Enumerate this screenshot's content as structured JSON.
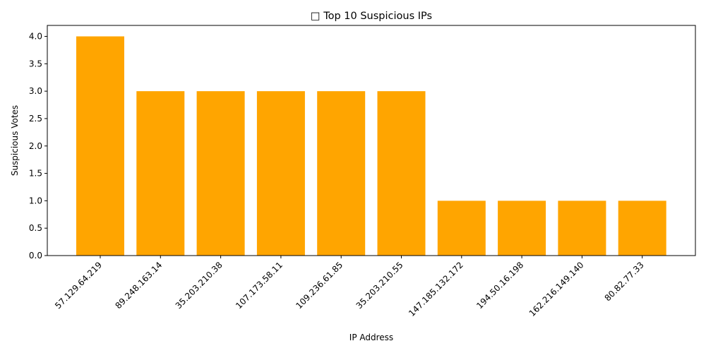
{
  "chart_data": {
    "type": "bar",
    "title": "□ Top 10 Suspicious IPs",
    "xlabel": "IP Address",
    "ylabel": "Suspicious Votes",
    "categories": [
      "57.129.64.219",
      "89.248.163.14",
      "35.203.210.38",
      "107.173.58.11",
      "109.236.61.85",
      "35.203.210.55",
      "147.185.132.172",
      "194.50.16.198",
      "162.216.149.140",
      "80.82.77.33"
    ],
    "values": [
      4,
      3,
      3,
      3,
      3,
      3,
      1,
      1,
      1,
      1
    ],
    "ylim": [
      0,
      4.2
    ],
    "yticks": [
      "0.0",
      "0.5",
      "1.0",
      "1.5",
      "2.0",
      "2.5",
      "3.0",
      "3.5",
      "4.0"
    ],
    "bar_color": "#ffa500",
    "grid": false,
    "legend": "none"
  }
}
